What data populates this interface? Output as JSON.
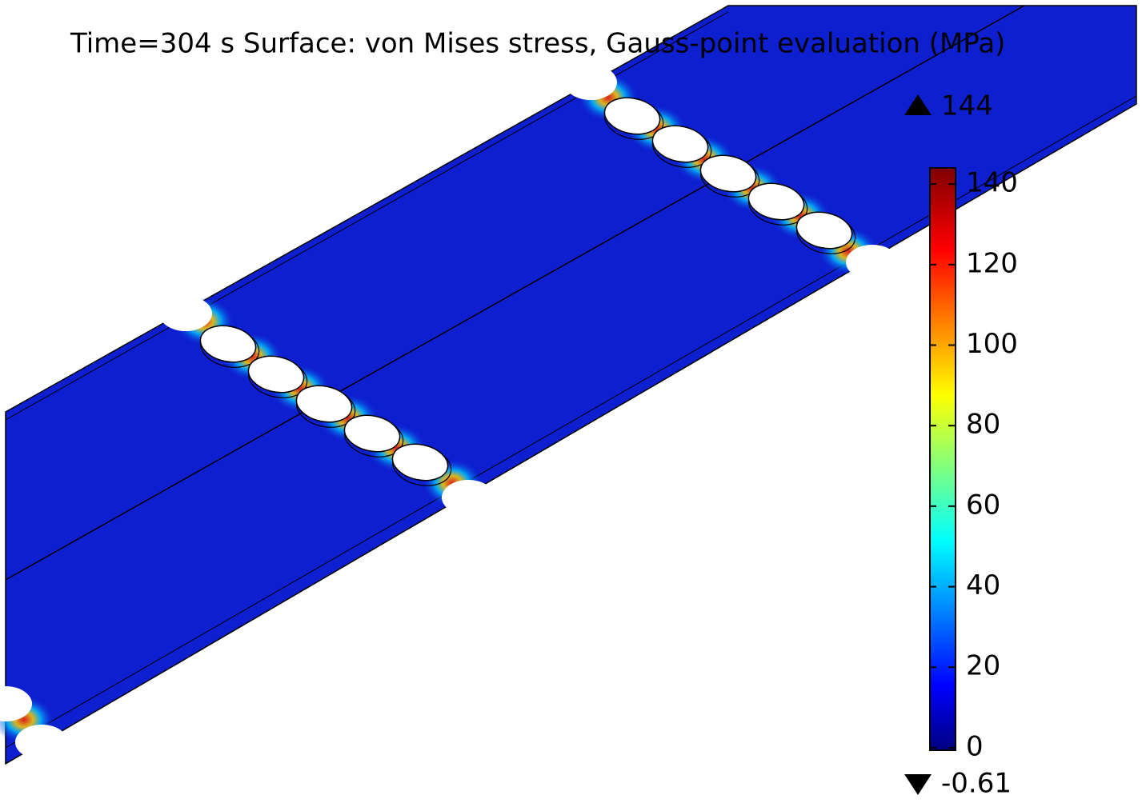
{
  "title": "Time=304 s   Surface: von Mises stress, Gauss-point evaluation (MPa)",
  "colorbar": {
    "max": 144,
    "min": -0.61,
    "max_label": "144",
    "min_label": "-0.61",
    "ticks": [
      0,
      20,
      40,
      60,
      80,
      100,
      120,
      140
    ]
  }
}
